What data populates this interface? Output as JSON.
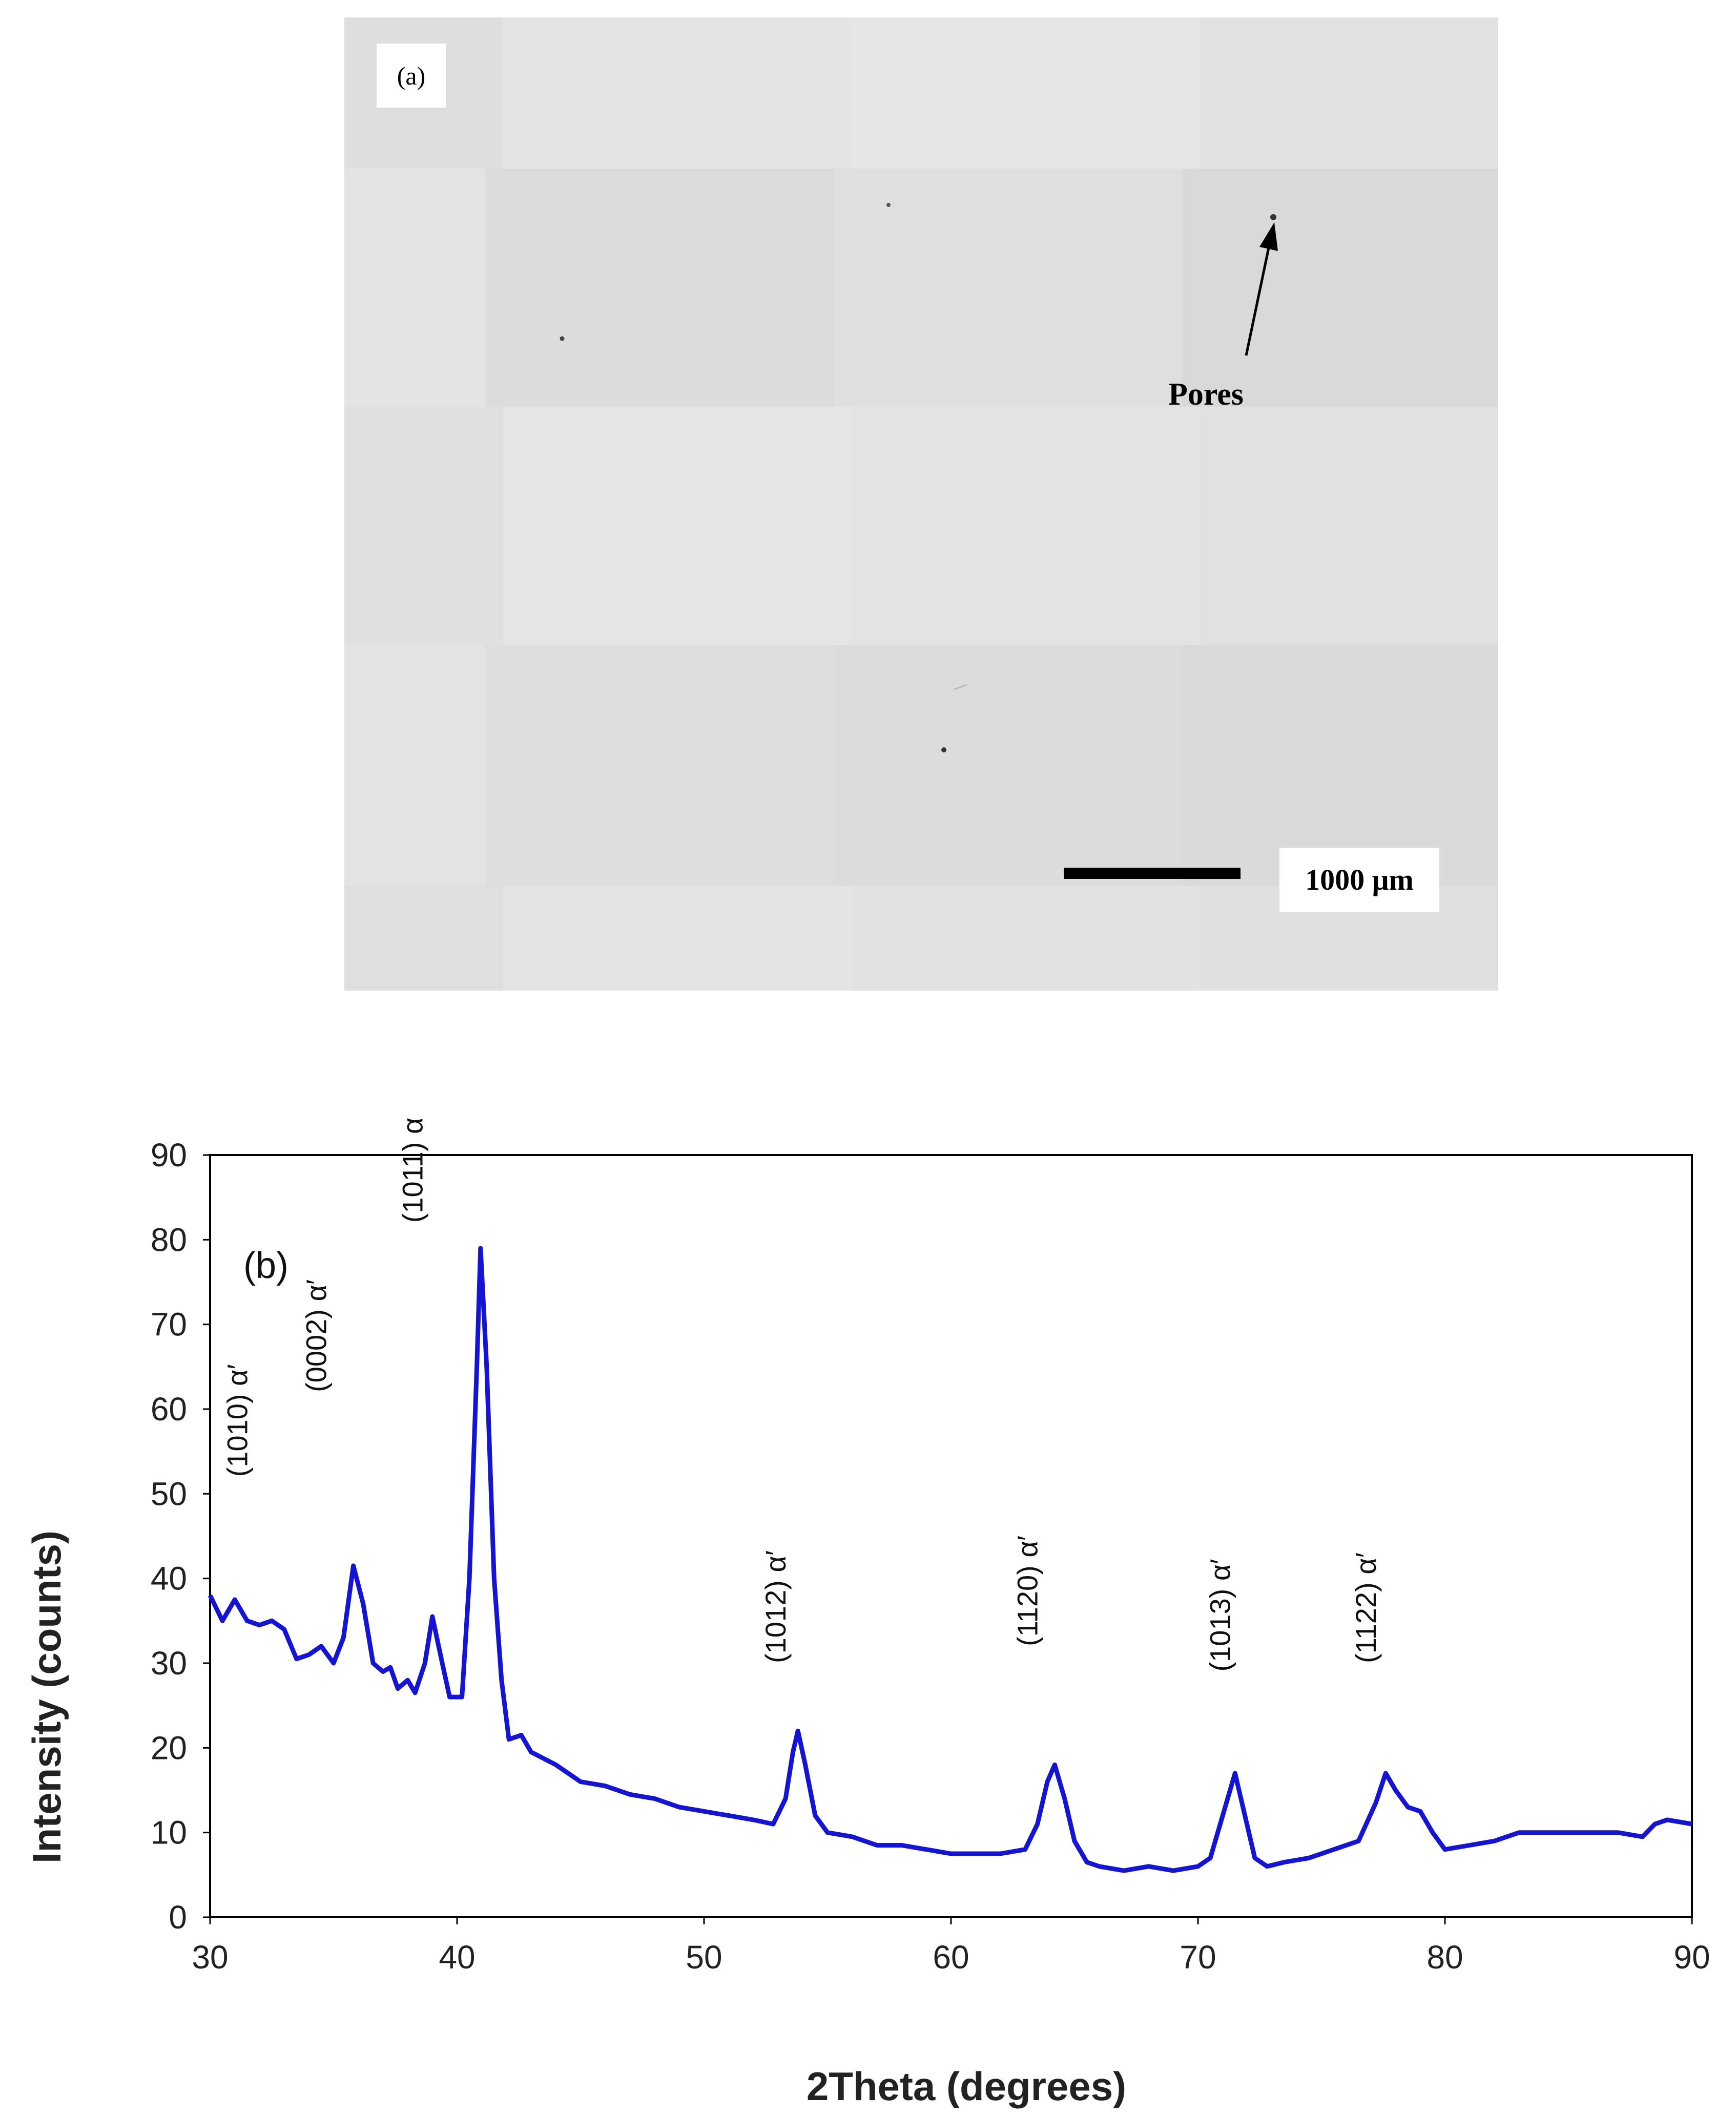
{
  "micrograph": {
    "panel_label": "(a)",
    "annotation": "Pores",
    "scale_bar_label": "1000 μm"
  },
  "chart_data": {
    "type": "line",
    "panel_label": "(b)",
    "title": "",
    "xlabel": "2Theta (degrees)",
    "ylabel": "Intensity (counts)",
    "xlim": [
      30,
      90
    ],
    "ylim": [
      0,
      90
    ],
    "x_ticks": [
      30,
      40,
      50,
      60,
      70,
      80,
      90
    ],
    "y_ticks": [
      0,
      10,
      20,
      30,
      40,
      50,
      60,
      70,
      80,
      90
    ],
    "grid": false,
    "line_color": "#1414d2",
    "series": [
      {
        "values": [
          [
            30.0,
            38
          ],
          [
            30.5,
            35
          ],
          [
            31.0,
            37.5
          ],
          [
            31.5,
            35
          ],
          [
            32.0,
            34.5
          ],
          [
            32.5,
            35
          ],
          [
            33.0,
            34
          ],
          [
            33.5,
            30.5
          ],
          [
            34.0,
            31
          ],
          [
            34.5,
            32
          ],
          [
            35.0,
            30
          ],
          [
            35.4,
            33
          ],
          [
            35.8,
            41.5
          ],
          [
            36.2,
            37
          ],
          [
            36.6,
            30
          ],
          [
            37.0,
            29
          ],
          [
            37.3,
            29.5
          ],
          [
            37.6,
            27
          ],
          [
            38.0,
            28
          ],
          [
            38.3,
            26.5
          ],
          [
            38.7,
            30
          ],
          [
            39.0,
            35.5
          ],
          [
            39.4,
            30
          ],
          [
            39.7,
            26
          ],
          [
            40.2,
            26
          ],
          [
            40.5,
            40
          ],
          [
            40.8,
            65
          ],
          [
            40.95,
            79
          ],
          [
            41.2,
            65
          ],
          [
            41.5,
            40
          ],
          [
            41.8,
            28
          ],
          [
            42.1,
            21
          ],
          [
            42.6,
            21.5
          ],
          [
            43.0,
            19.5
          ],
          [
            44.0,
            18
          ],
          [
            45.0,
            16
          ],
          [
            46.0,
            15.5
          ],
          [
            47.0,
            14.5
          ],
          [
            48.0,
            14
          ],
          [
            49.0,
            13
          ],
          [
            50.0,
            12.5
          ],
          [
            51.0,
            12
          ],
          [
            52.0,
            11.5
          ],
          [
            52.8,
            11
          ],
          [
            53.3,
            14
          ],
          [
            53.6,
            19.5
          ],
          [
            53.8,
            22
          ],
          [
            54.1,
            18
          ],
          [
            54.5,
            12
          ],
          [
            55.0,
            10
          ],
          [
            56.0,
            9.5
          ],
          [
            57.0,
            8.5
          ],
          [
            58.0,
            8.5
          ],
          [
            59.0,
            8
          ],
          [
            60.0,
            7.5
          ],
          [
            61.0,
            7.5
          ],
          [
            62.0,
            7.5
          ],
          [
            63.0,
            8
          ],
          [
            63.5,
            11
          ],
          [
            63.9,
            16
          ],
          [
            64.2,
            18
          ],
          [
            64.6,
            14
          ],
          [
            65.0,
            9
          ],
          [
            65.5,
            6.5
          ],
          [
            66.0,
            6
          ],
          [
            67.0,
            5.5
          ],
          [
            68.0,
            6
          ],
          [
            69.0,
            5.5
          ],
          [
            70.0,
            6
          ],
          [
            70.5,
            7
          ],
          [
            71.0,
            12
          ],
          [
            71.5,
            17
          ],
          [
            71.9,
            12
          ],
          [
            72.3,
            7
          ],
          [
            72.8,
            6
          ],
          [
            73.5,
            6.5
          ],
          [
            74.5,
            7
          ],
          [
            75.5,
            8
          ],
          [
            76.5,
            9
          ],
          [
            77.2,
            13.5
          ],
          [
            77.6,
            17
          ],
          [
            78.0,
            15
          ],
          [
            78.5,
            13
          ],
          [
            79.0,
            12.5
          ],
          [
            79.5,
            10
          ],
          [
            80.0,
            8
          ],
          [
            81.0,
            8.5
          ],
          [
            82.0,
            9
          ],
          [
            83.0,
            10
          ],
          [
            84.0,
            10
          ],
          [
            85.0,
            10
          ],
          [
            86.0,
            10
          ],
          [
            87.0,
            10
          ],
          [
            88.0,
            9.5
          ],
          [
            88.5,
            11
          ],
          [
            89.0,
            11.5
          ],
          [
            90.0,
            11
          ]
        ]
      }
    ],
    "annotations": [
      {
        "text": "(1010) α′",
        "x": 31.5,
        "y": 52
      },
      {
        "text": "(0002) α′",
        "x": 34.7,
        "y": 62
      },
      {
        "text": "(1011) α′",
        "x": 38.6,
        "y": 82
      },
      {
        "text": "(1012) α′",
        "x": 53.3,
        "y": 30
      },
      {
        "text": "(1120) α′",
        "x": 63.5,
        "y": 32
      },
      {
        "text": "(1013) α′",
        "x": 71.3,
        "y": 29
      },
      {
        "text": "(1122) α′",
        "x": 77.2,
        "y": 30
      }
    ]
  }
}
